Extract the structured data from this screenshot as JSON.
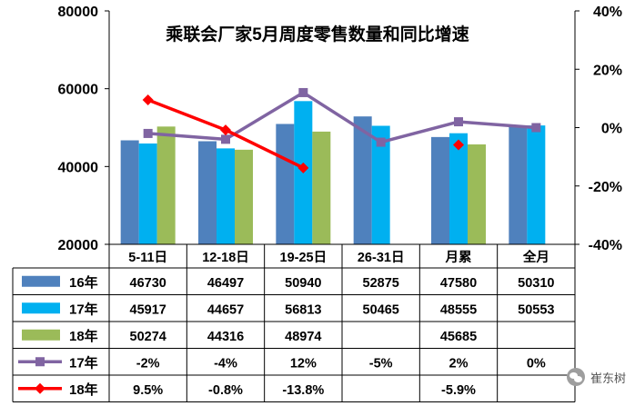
{
  "chart_data": {
    "type": "bar",
    "title": "乘联会厂家5月周度零售数量和同比增速",
    "categories": [
      "5-11日",
      "12-18日",
      "19-25日",
      "26-31日",
      "月累",
      "全月"
    ],
    "y_left": {
      "min": 20000,
      "max": 80000,
      "ticks": [
        "20000",
        "40000",
        "60000",
        "80000"
      ]
    },
    "y_right": {
      "min": -40,
      "max": 40,
      "ticks": [
        "-40%",
        "-20%",
        "0%",
        "20%",
        "40%"
      ]
    },
    "grid": false,
    "legend": "table-left",
    "series": [
      {
        "name": "16年",
        "kind": "bar",
        "color": "#4f81bd",
        "values": [
          46730,
          46497,
          50940,
          52875,
          47580,
          50310
        ],
        "labels": [
          "46730",
          "46497",
          "50940",
          "52875",
          "47580",
          "50310"
        ]
      },
      {
        "name": "17年",
        "kind": "bar",
        "color": "#00b0f0",
        "values": [
          45917,
          44657,
          56813,
          50465,
          48555,
          50553
        ],
        "labels": [
          "45917",
          "44657",
          "56813",
          "50465",
          "48555",
          "50553"
        ]
      },
      {
        "name": "18年",
        "kind": "bar",
        "color": "#9bbb59",
        "values": [
          50274,
          44316,
          48974,
          null,
          45685,
          null
        ],
        "labels": [
          "50274",
          "44316",
          "48974",
          "",
          "45685",
          ""
        ]
      },
      {
        "name": "17年",
        "kind": "line",
        "axis": "right",
        "color": "#8064a2",
        "marker": "square",
        "values": [
          -2,
          -4,
          12,
          -5,
          2,
          0
        ],
        "labels": [
          "-2%",
          "-4%",
          "12%",
          "-5%",
          "2%",
          "0%"
        ]
      },
      {
        "name": "18年",
        "kind": "line",
        "axis": "right",
        "color": "#ff0000",
        "marker": "diamond",
        "values": [
          9.5,
          -0.8,
          -13.8,
          null,
          -5.9,
          null
        ],
        "labels": [
          "9.5%",
          "-0.8%",
          "-13.8%",
          "",
          "-5.9%",
          ""
        ]
      }
    ]
  },
  "watermark": {
    "text": "崔东树",
    "icon": "wechat-icon"
  }
}
